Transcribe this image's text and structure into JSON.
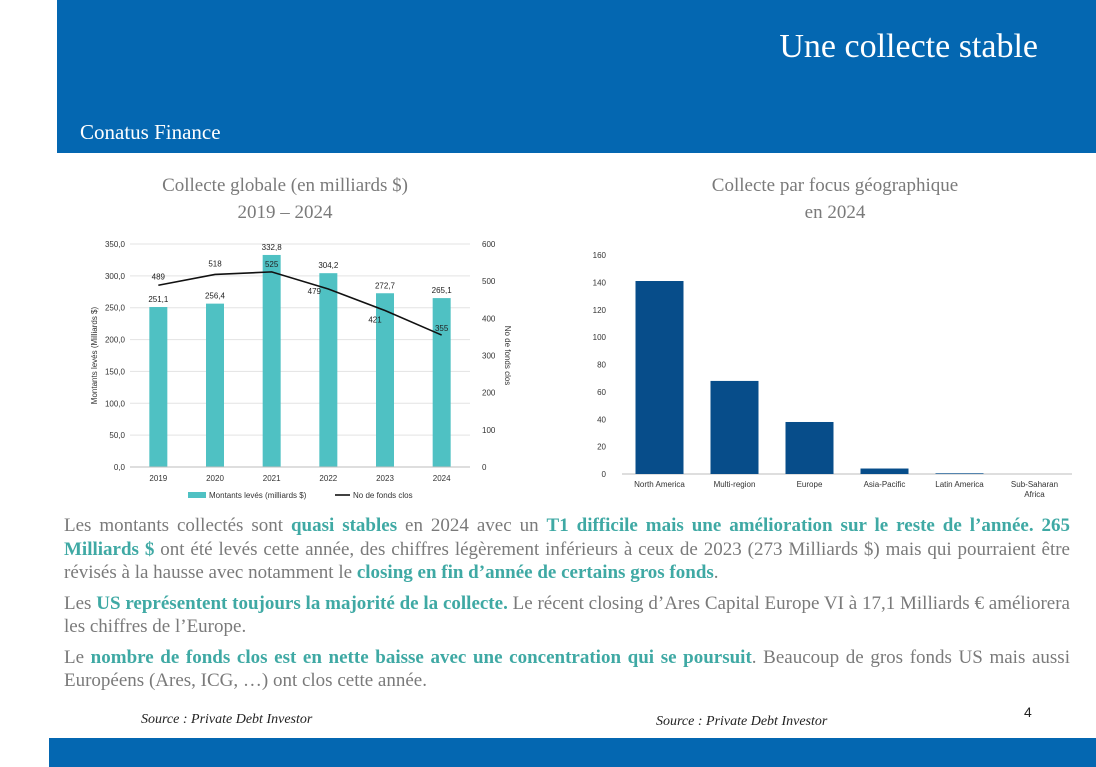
{
  "header": {
    "title": "Une collecte stable",
    "brand": "Conatus Finance"
  },
  "chart_data": [
    {
      "type": "bar+line",
      "title_line1": "Collecte globale (en milliards $)",
      "title_line2": "2019 – 2024",
      "categories": [
        "2019",
        "2020",
        "2021",
        "2022",
        "2023",
        "2024"
      ],
      "series": [
        {
          "name": "Montants levés (milliards $)",
          "type": "bar",
          "axis": "left",
          "values": [
            251.1,
            256.4,
            332.8,
            304.2,
            272.7,
            265.1
          ],
          "labels": [
            "251,1",
            "256,4",
            "332,8",
            "304,2",
            "272,7",
            "265,1"
          ],
          "color": "#4fc1c3"
        },
        {
          "name": "No de fonds clos",
          "type": "line",
          "axis": "right",
          "values": [
            489,
            518,
            525,
            479,
            421,
            355
          ],
          "labels": [
            "489",
            "518",
            "525",
            "479",
            "421",
            "355"
          ],
          "color": "#111111"
        }
      ],
      "ylabel": "Montants levés (Milliards $)",
      "y2label": "No de fonds clos",
      "ylim": [
        0,
        350
      ],
      "y2lim": [
        0,
        600
      ],
      "yticks": [
        "0,0",
        "50,0",
        "100,0",
        "150,0",
        "200,0",
        "250,0",
        "300,0",
        "350,0"
      ],
      "y2ticks": [
        "0",
        "100",
        "200",
        "300",
        "400",
        "500",
        "600"
      ],
      "legend": "bottom"
    },
    {
      "type": "bar",
      "title_line1": "Collecte par focus géographique",
      "title_line2": "en 2024",
      "categories": [
        "North America",
        "Multi-region",
        "Europe",
        "Asia-Pacific",
        "Latin America",
        "Sub-Saharan Africa"
      ],
      "values": [
        141,
        68,
        38,
        4,
        0.5,
        0
      ],
      "ylim": [
        0,
        160
      ],
      "yticks": [
        "0",
        "20",
        "40",
        "60",
        "80",
        "100",
        "120",
        "140",
        "160"
      ],
      "color": "#074d8a"
    }
  ],
  "text": {
    "p1": [
      {
        "t": "Les montants collectés sont ",
        "h": false
      },
      {
        "t": "quasi stables",
        "h": true
      },
      {
        "t": " en 2024 avec un ",
        "h": false
      },
      {
        "t": "T1 difficile mais une amélioration sur le reste de l’année. 265 Milliards $",
        "h": true
      },
      {
        "t": " ont été levés cette année, des chiffres légèrement inférieurs à ceux de 2023 (273 Milliards $) mais qui pourraient être révisés à la hausse avec notamment le ",
        "h": false
      },
      {
        "t": "closing en fin d’année de certains gros fonds",
        "h": true
      },
      {
        "t": ".",
        "h": false
      }
    ],
    "p2": [
      {
        "t": "Les ",
        "h": false
      },
      {
        "t": "US représentent toujours la majorité de la collecte.",
        "h": true
      },
      {
        "t": " Le récent closing d’Ares Capital Europe VI à 17,1 Milliards € améliorera les chiffres de l’Europe.",
        "h": false
      }
    ],
    "p3": [
      {
        "t": "Le ",
        "h": false
      },
      {
        "t": "nombre de fonds clos est en nette baisse avec une concentration qui se poursuit",
        "h": true
      },
      {
        "t": ". Beaucoup de gros fonds US mais aussi Européens (Ares, ICG, …) ont clos cette année.",
        "h": false
      }
    ]
  },
  "sources": {
    "left": "Source : Private Debt Investor",
    "right": "Source : Private Debt Investor"
  },
  "page_number": "4"
}
